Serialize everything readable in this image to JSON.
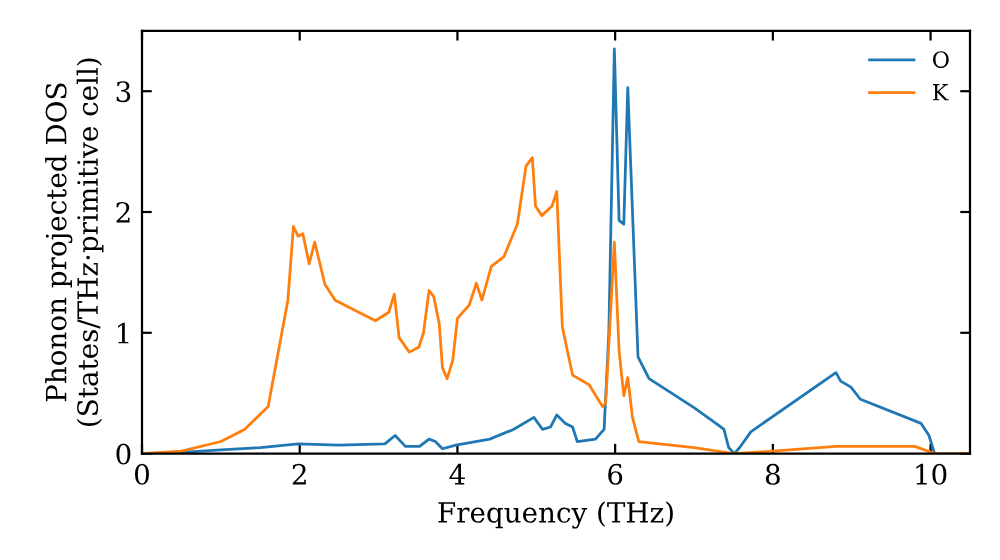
{
  "chart_data": {
    "type": "line",
    "xlabel": "Frequency (THz)",
    "ylabel": "Phonon projected DOS\n(States/THz·primitive cell)",
    "xlim": [
      0,
      10.5
    ],
    "ylim": [
      0,
      3.5
    ],
    "xticks": [
      0,
      2,
      4,
      6,
      8,
      10
    ],
    "yticks": [
      0,
      1,
      2,
      3
    ],
    "legend": "top right",
    "grid": false,
    "marker": "none",
    "line_style": "solid",
    "series": [
      {
        "name": "O",
        "color": "#1f77b4",
        "x": [
          0,
          0.5,
          1,
          1.5,
          1.98,
          2.5,
          3.08,
          3.21,
          3.34,
          3.52,
          3.64,
          3.72,
          3.81,
          3.98,
          4.41,
          4.71,
          4.97,
          5.08,
          5.18,
          5.26,
          5.37,
          5.46,
          5.52,
          5.75,
          5.86,
          5.92,
          5.99,
          6.05,
          6.11,
          6.16,
          6.29,
          6.43,
          7.0,
          7.3,
          7.38,
          7.44,
          7.51,
          7.58,
          7.72,
          8.8,
          8.86,
          8.99,
          9.11,
          9.88,
          9.98,
          10.05
        ],
        "values": [
          0,
          0.01,
          0.03,
          0.05,
          0.08,
          0.07,
          0.08,
          0.15,
          0.06,
          0.06,
          0.12,
          0.1,
          0.04,
          0.07,
          0.12,
          0.2,
          0.3,
          0.2,
          0.22,
          0.32,
          0.25,
          0.22,
          0.1,
          0.12,
          0.2,
          1.0,
          3.35,
          1.93,
          1.9,
          3.03,
          0.8,
          0.62,
          0.38,
          0.24,
          0.2,
          0.05,
          0.0,
          0.05,
          0.18,
          0.67,
          0.6,
          0.55,
          0.45,
          0.25,
          0.15,
          0.0
        ]
      },
      {
        "name": "K",
        "color": "#ff7f0e",
        "x": [
          0,
          0.5,
          1,
          1.3,
          1.6,
          1.85,
          1.92,
          1.98,
          2.04,
          2.12,
          2.19,
          2.32,
          2.45,
          2.96,
          3.13,
          3.2,
          3.26,
          3.39,
          3.51,
          3.57,
          3.64,
          3.7,
          3.77,
          3.81,
          3.87,
          3.94,
          4.0,
          4.15,
          4.24,
          4.31,
          4.43,
          4.59,
          4.76,
          4.87,
          4.95,
          4.99,
          5.07,
          5.2,
          5.26,
          5.33,
          5.46,
          5.67,
          5.84,
          5.88,
          5.99,
          6.05,
          6.11,
          6.16,
          6.22,
          6.3,
          7.0,
          7.5,
          8.0,
          8.8,
          9.8,
          10.05,
          10.5
        ],
        "values": [
          0,
          0.02,
          0.1,
          0.2,
          0.39,
          1.27,
          1.88,
          1.8,
          1.82,
          1.57,
          1.75,
          1.4,
          1.27,
          1.1,
          1.17,
          1.32,
          0.96,
          0.84,
          0.88,
          1.0,
          1.35,
          1.3,
          1.07,
          0.71,
          0.62,
          0.77,
          1.12,
          1.23,
          1.41,
          1.27,
          1.55,
          1.63,
          1.9,
          2.38,
          2.45,
          2.05,
          1.97,
          2.05,
          2.17,
          1.05,
          0.65,
          0.57,
          0.39,
          0.42,
          1.75,
          0.85,
          0.48,
          0.63,
          0.3,
          0.1,
          0.05,
          0.0,
          0.02,
          0.06,
          0.06,
          0.0,
          0.0
        ]
      }
    ]
  }
}
